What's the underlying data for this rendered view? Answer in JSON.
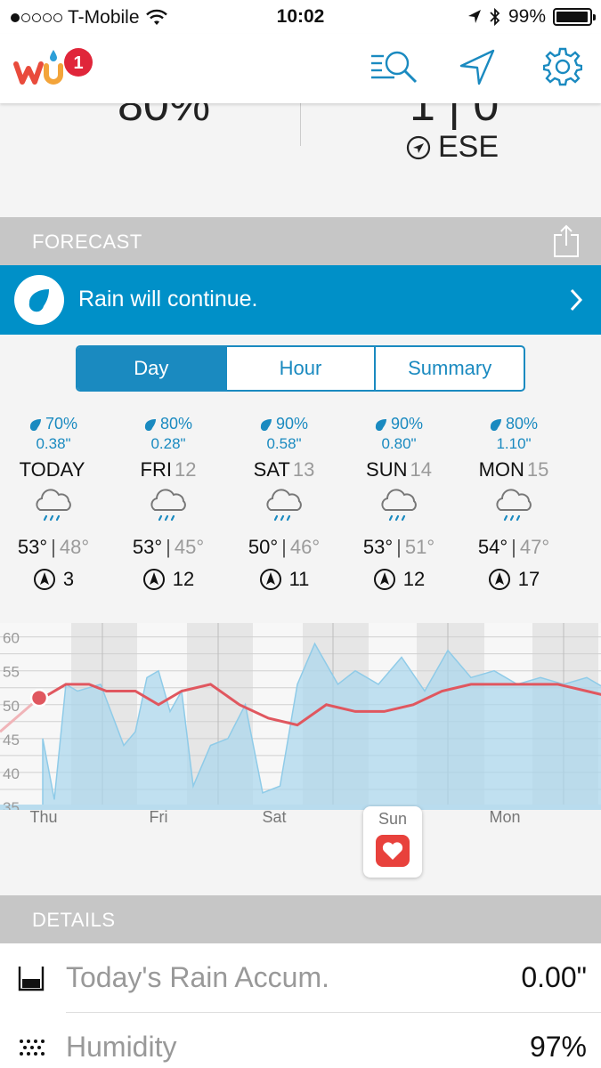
{
  "status_bar": {
    "carrier": "T-Mobile",
    "time": "10:02",
    "battery": "99%",
    "signal_bars": 1
  },
  "header": {
    "logo_text": "wu",
    "badge_count": "1",
    "icons": [
      "search-list-icon",
      "location-arrow-icon",
      "gear-icon"
    ]
  },
  "current": {
    "humidity_partial": "80%",
    "wind_partial": "1 | 0",
    "wind_direction": "ESE"
  },
  "forecast": {
    "title": "FORECAST",
    "banner_text": "Rain will continue.",
    "tabs": [
      {
        "label": "Day",
        "active": true
      },
      {
        "label": "Hour",
        "active": false
      },
      {
        "label": "Summary",
        "active": false
      }
    ],
    "days": [
      {
        "pop": "70%",
        "amount": "0.38\"",
        "name": "TODAY",
        "num": "",
        "high": "53°",
        "low": "48°",
        "wind": "3"
      },
      {
        "pop": "80%",
        "amount": "0.28\"",
        "name": "FRI",
        "num": "12",
        "high": "53°",
        "low": "45°",
        "wind": "12"
      },
      {
        "pop": "90%",
        "amount": "0.58\"",
        "name": "SAT",
        "num": "13",
        "high": "50°",
        "low": "46°",
        "wind": "11"
      },
      {
        "pop": "90%",
        "amount": "0.80\"",
        "name": "SUN",
        "num": "14",
        "high": "53°",
        "low": "51°",
        "wind": "12"
      },
      {
        "pop": "80%",
        "amount": "1.10\"",
        "name": "MON",
        "num": "15",
        "high": "54°",
        "low": "47°",
        "wind": "17"
      }
    ]
  },
  "chart_data": {
    "type": "line",
    "title": "",
    "xlabel": "",
    "ylabel": "",
    "y_ticks": [
      "60",
      "55",
      "50",
      "45",
      "40",
      "35"
    ],
    "ylim": [
      35,
      61
    ],
    "x_labels": [
      "Thu",
      "Fri",
      "Sat",
      "Sun",
      "Mon"
    ],
    "series": [
      {
        "color": "#e0575f",
        "x": [
          0,
          0.2,
          0.4,
          0.55,
          0.8,
          1.0,
          1.2,
          1.45,
          1.7,
          1.95,
          2.2,
          2.45,
          2.7,
          2.95,
          3.2,
          3.45,
          3.7,
          3.95,
          4.2,
          4.45,
          4.7,
          4.95
        ],
        "values": [
          51,
          53,
          53,
          52,
          52,
          50,
          52,
          53,
          50,
          48,
          47,
          50,
          49,
          49,
          50,
          52,
          53,
          53,
          53,
          53,
          52,
          51
        ]
      },
      {
        "color": "#a8d6ec",
        "x": [
          0,
          0.1,
          0.2,
          0.3,
          0.5,
          0.7,
          0.8,
          0.9,
          1.0,
          1.1,
          1.2,
          1.3,
          1.45,
          1.6,
          1.75,
          1.9,
          2.05,
          2.2,
          2.35,
          2.55,
          2.7,
          2.9,
          3.1,
          3.3,
          3.5,
          3.7,
          3.9,
          4.1,
          4.3,
          4.5,
          4.7,
          4.9,
          5.0
        ],
        "values": [
          45,
          36,
          53,
          52,
          53,
          44,
          46,
          54,
          55,
          49,
          52,
          38,
          44,
          45,
          50,
          37,
          38,
          53,
          59,
          53,
          55,
          53,
          57,
          52,
          58,
          54,
          55,
          53,
          54,
          53,
          54,
          52,
          49
        ]
      }
    ]
  },
  "health_button": {
    "label": "Sun"
  },
  "details": {
    "title": "DETAILS",
    "rows": [
      {
        "label": "Today's Rain Accum.",
        "value": "0.00\""
      },
      {
        "label": "Humidity",
        "value": "97%"
      }
    ]
  }
}
